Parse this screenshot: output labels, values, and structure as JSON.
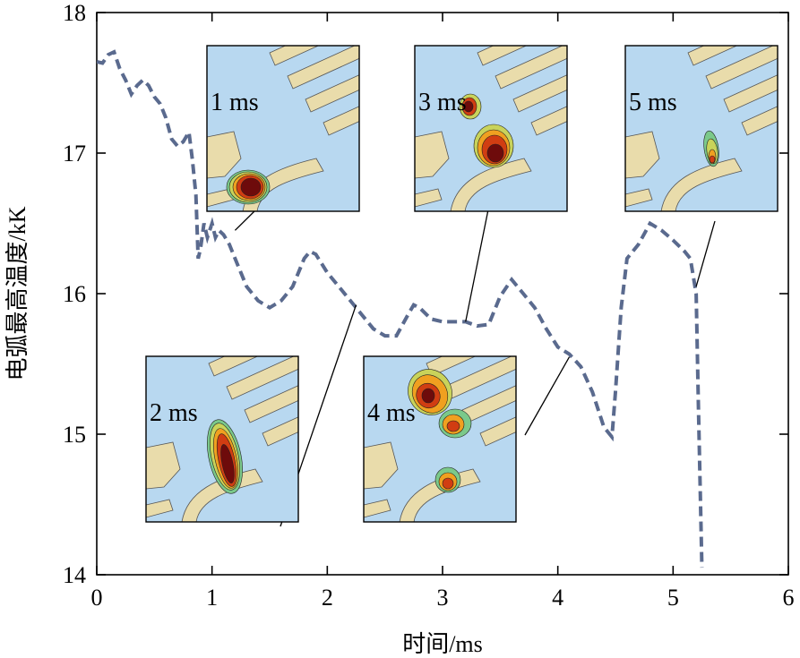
{
  "chart_data": {
    "type": "line",
    "xlabel": "时间/ms",
    "ylabel": "电弧最高温度/kK",
    "xlim": [
      0,
      6
    ],
    "ylim": [
      14,
      18
    ],
    "xticks": [
      0,
      1,
      2,
      3,
      4,
      5,
      6
    ],
    "yticks": [
      14,
      15,
      16,
      17,
      18
    ],
    "grid": false,
    "line_color": "#5a6a8e",
    "line_style": "dashed",
    "series": [
      {
        "x": [
          0.0,
          0.05,
          0.1,
          0.15,
          0.2,
          0.25,
          0.3,
          0.35,
          0.4,
          0.45,
          0.5,
          0.55,
          0.6,
          0.65,
          0.7,
          0.75,
          0.8,
          0.83,
          0.86,
          0.88,
          0.9,
          0.93,
          0.96,
          1.0,
          1.03,
          1.06,
          1.1,
          1.15,
          1.2,
          1.3,
          1.4,
          1.5,
          1.6,
          1.7,
          1.8,
          1.85,
          1.9,
          2.0,
          2.1,
          2.2,
          2.3,
          2.4,
          2.5,
          2.6,
          2.7,
          2.75,
          2.8,
          2.9,
          3.0,
          3.1,
          3.2,
          3.3,
          3.4,
          3.5,
          3.6,
          3.65,
          3.7,
          3.8,
          3.9,
          4.0,
          4.1,
          4.2,
          4.3,
          4.4,
          4.47,
          4.5,
          4.55,
          4.6,
          4.7,
          4.8,
          4.9,
          5.0,
          5.1,
          5.15,
          5.2,
          5.22,
          5.25
        ],
        "y": [
          17.65,
          17.64,
          17.7,
          17.72,
          17.6,
          17.52,
          17.42,
          17.48,
          17.52,
          17.48,
          17.4,
          17.35,
          17.25,
          17.1,
          17.05,
          17.08,
          17.15,
          16.95,
          16.7,
          16.25,
          16.32,
          16.5,
          16.4,
          16.5,
          16.4,
          16.45,
          16.42,
          16.35,
          16.25,
          16.05,
          15.95,
          15.9,
          15.95,
          16.05,
          16.25,
          16.3,
          16.28,
          16.15,
          16.05,
          15.95,
          15.85,
          15.75,
          15.7,
          15.7,
          15.85,
          15.92,
          15.9,
          15.82,
          15.8,
          15.8,
          15.8,
          15.77,
          15.78,
          15.98,
          16.1,
          16.05,
          16.0,
          15.9,
          15.75,
          15.62,
          15.57,
          15.48,
          15.3,
          15.05,
          14.98,
          15.3,
          15.9,
          16.25,
          16.35,
          16.5,
          16.45,
          16.38,
          16.3,
          16.25,
          16.0,
          15.2,
          14.05
        ]
      }
    ],
    "annotations": [
      {
        "label": "1 ms",
        "t": 1.2,
        "value": 16.45
      },
      {
        "label": "2 ms",
        "t": 2.25,
        "value": 15.92
      },
      {
        "label": "3 ms",
        "t": 3.2,
        "value": 15.8
      },
      {
        "label": "4 ms",
        "t": 4.1,
        "value": 15.55
      },
      {
        "label": "5 ms",
        "t": 5.2,
        "value": 16.05
      }
    ]
  },
  "colors": {
    "inset_background": "#b8d8f0",
    "inset_electrode": "#e9dcab",
    "arc_core": "#6e0b0b",
    "arc_hot": "#d13d12",
    "arc_warm": "#f0a020",
    "arc_mid": "#c9d35a",
    "arc_cool": "#7bc98a"
  }
}
